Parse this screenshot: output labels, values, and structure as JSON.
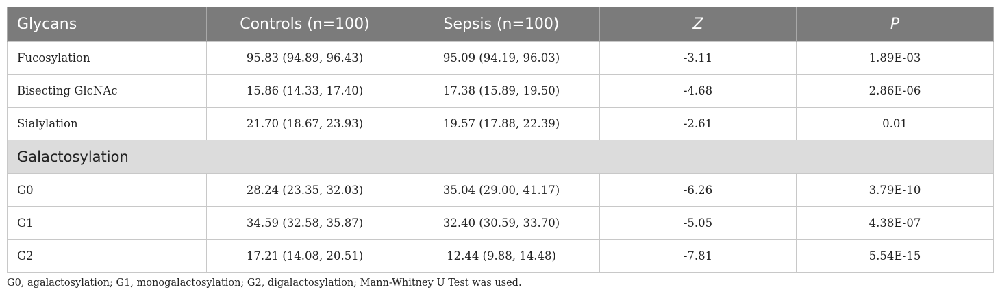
{
  "table": {
    "headers": [
      "Glycans",
      "Controls (n=100)",
      "Sepsis (n=100)",
      "Z",
      "P"
    ],
    "rows_top": [
      [
        "Fucosylation",
        "95.83 (94.89, 96.43)",
        "95.09 (94.19, 96.03)",
        "-3.11",
        "1.89E-03"
      ],
      [
        "Bisecting GlcNAc",
        "15.86 (14.33, 17.40)",
        "17.38 (15.89, 19.50)",
        "-4.68",
        "2.86E-06"
      ],
      [
        "Sialylation",
        "21.70 (18.67, 23.93)",
        "19.57 (17.88, 22.39)",
        "-2.61",
        "0.01"
      ]
    ],
    "section_label": "Galactosylation",
    "rows_bottom": [
      [
        "G0",
        "28.24 (23.35, 32.03)",
        "35.04 (29.00, 41.17)",
        "-6.26",
        "3.79E-10"
      ],
      [
        "G1",
        "34.59 (32.58, 35.87)",
        "32.40 (30.59, 33.70)",
        "-5.05",
        "4.38E-07"
      ],
      [
        "G2",
        "17.21 (14.08, 20.51)",
        "12.44 (9.88, 14.48)",
        "-7.81",
        "5.54E-15"
      ]
    ]
  },
  "footnote": "G0, agalactosylation; G1, monogalactosylation; G2, digalactosylation; Mann-Whitney U Test was used.",
  "colors": {
    "header_bg": "#7b7b7b",
    "section_bg": "#dcdcdc",
    "border": "#c8c8c8"
  }
}
